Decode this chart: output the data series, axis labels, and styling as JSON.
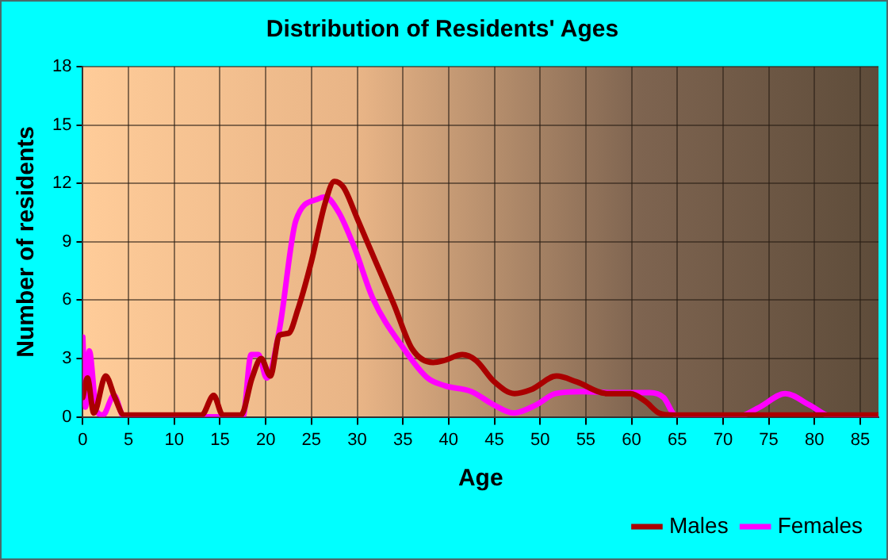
{
  "chart_data": {
    "type": "line",
    "title": "Distribution of Residents' Ages",
    "xlabel": "Age",
    "ylabel": "Number of residents",
    "xlim": [
      0,
      87
    ],
    "xticks": [
      0,
      5,
      10,
      15,
      20,
      25,
      30,
      35,
      40,
      45,
      50,
      55,
      60,
      65,
      70,
      75,
      80,
      85
    ],
    "ylim": [
      0,
      18
    ],
    "yticks": [
      0,
      3,
      6,
      9,
      12,
      15,
      18
    ],
    "grid": true,
    "legend": "bottom right",
    "marker": "none",
    "line_style": "solid",
    "series": [
      {
        "name": "Males",
        "color": "#aa0000",
        "x": [
          0,
          0.5,
          1.2,
          2.5,
          3.5,
          4.5,
          13,
          14.3,
          15.3,
          17.3,
          18.5,
          19.5,
          20.5,
          21.5,
          22.5,
          23.5,
          25,
          26.5,
          27.5,
          28.5,
          30,
          32,
          34,
          36,
          38.3,
          39.5,
          41.5,
          43,
          45,
          47.2,
          49,
          51.8,
          54,
          57.3,
          59.9,
          61.5,
          63,
          64.5,
          87
        ],
        "values": [
          1.0,
          2.0,
          0.2,
          2.1,
          1.0,
          0.1,
          0.1,
          1.1,
          0.1,
          0.1,
          2.0,
          3.0,
          2.1,
          4.2,
          4.3,
          5.5,
          8.0,
          11.0,
          12.1,
          11.8,
          10.2,
          8.0,
          5.8,
          3.5,
          2.8,
          2.9,
          3.2,
          2.9,
          1.8,
          1.2,
          1.4,
          2.1,
          1.8,
          1.2,
          1.2,
          0.8,
          0.2,
          0.1,
          0.1
        ]
      },
      {
        "name": "Females",
        "color": "#ff00ff",
        "x": [
          0,
          0.3,
          0.7,
          1.5,
          2.2,
          3.4,
          4.5,
          17.5,
          18.4,
          19.2,
          20.1,
          21.5,
          23.3,
          25.7,
          26.5,
          28,
          29.7,
          31.7,
          35.1,
          37.7,
          39.6,
          42.5,
          45,
          47.1,
          49.5,
          51.7,
          54.6,
          58,
          62,
          63.5,
          64.8,
          71.5,
          74,
          76.8,
          79.5,
          81.7,
          87
        ],
        "values": [
          4.1,
          0.5,
          3.4,
          0.3,
          0.1,
          1.1,
          0,
          0,
          3.2,
          3.2,
          2.0,
          4.5,
          10.1,
          11.2,
          11.3,
          10.5,
          8.7,
          6.1,
          3.5,
          2.0,
          1.6,
          1.3,
          0.6,
          0.2,
          0.6,
          1.2,
          1.3,
          1.25,
          1.25,
          1.0,
          0.1,
          0,
          0.5,
          1.2,
          0.6,
          0.05,
          0
        ]
      }
    ]
  }
}
